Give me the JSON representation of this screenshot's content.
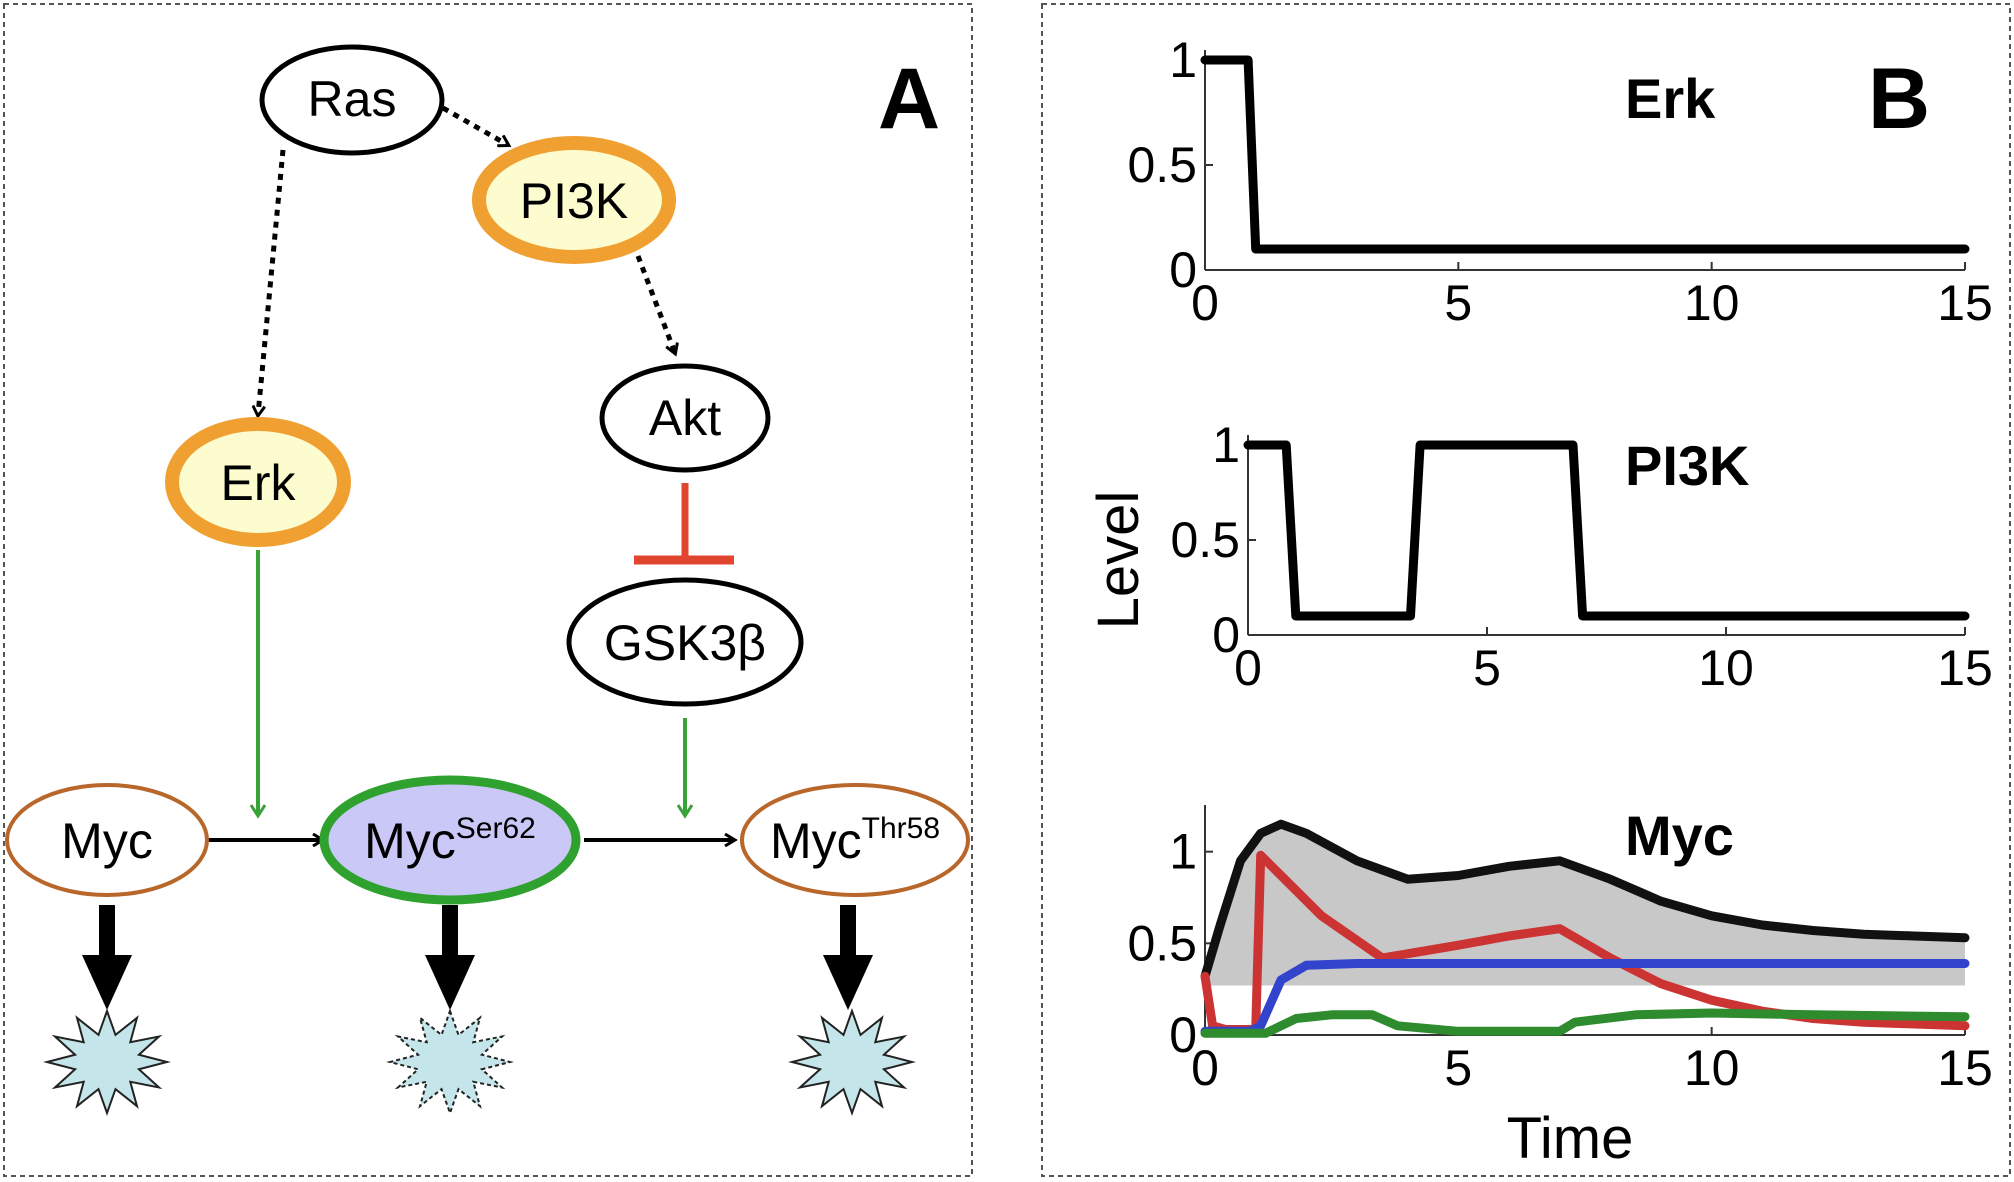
{
  "panel_a": {
    "label": "A",
    "nodes": {
      "ras": "Ras",
      "pi3k": "PI3K",
      "akt": "Akt",
      "erk": "Erk",
      "gsk3b": "GSK3β",
      "myc": "Myc",
      "myc_ser62_base": "Myc",
      "myc_ser62_sup": "Ser62",
      "myc_thr58_base": "Myc",
      "myc_thr58_sup": "Thr58"
    },
    "colors": {
      "node_outline": "#000000",
      "highlight_ring": "#f0a030",
      "highlight_fill": "#fdfccf",
      "myc_ring": "#b8662a",
      "ser62_ring": "#2fa12f",
      "ser62_fill": "#c9c8f7",
      "activation": "#39a339",
      "inhibition": "#e2452f",
      "degradation_fill": "#c4e6ea"
    }
  },
  "panel_b": {
    "label": "B",
    "y_axis_label": "Level",
    "x_axis_label": "Time"
  },
  "chart_data": [
    {
      "type": "line",
      "title": "Erk",
      "xlim": [
        0,
        15
      ],
      "ylim": [
        0,
        1
      ],
      "x_ticks": [
        "0",
        "5",
        "10",
        "15"
      ],
      "y_ticks": [
        "0",
        "0.5",
        "1"
      ],
      "series": [
        {
          "color": "#000000",
          "points": [
            [
              0,
              1
            ],
            [
              0.5,
              1
            ],
            [
              0.85,
              1
            ],
            [
              1,
              0.1
            ],
            [
              15,
              0.1
            ]
          ]
        }
      ]
    },
    {
      "type": "line",
      "title": "PI3K",
      "xlim": [
        0,
        15
      ],
      "ylim": [
        0,
        1
      ],
      "x_ticks": [
        "0",
        "5",
        "10",
        "15"
      ],
      "y_ticks": [
        "0",
        "0.5",
        "1"
      ],
      "series": [
        {
          "color": "#000000",
          "points": [
            [
              0,
              1
            ],
            [
              0.8,
              1
            ],
            [
              1,
              0.1
            ],
            [
              3.4,
              0.1
            ],
            [
              3.6,
              1
            ],
            [
              6.8,
              1
            ],
            [
              7,
              0.1
            ],
            [
              15,
              0.1
            ]
          ]
        }
      ]
    },
    {
      "type": "line",
      "title": "Myc",
      "xlim": [
        0,
        15
      ],
      "ylim": [
        0,
        1.2
      ],
      "x_ticks": [
        "0",
        "5",
        "10",
        "15"
      ],
      "y_ticks": [
        "0",
        "0.5",
        "1"
      ],
      "band": {
        "color": "#c8c8c8",
        "lower": 0.27,
        "upper_series": 0
      },
      "series": [
        {
          "color": "#111111",
          "points": [
            [
              0,
              0.32
            ],
            [
              0.3,
              0.6
            ],
            [
              0.7,
              0.95
            ],
            [
              1.1,
              1.1
            ],
            [
              1.5,
              1.15
            ],
            [
              2,
              1.1
            ],
            [
              3,
              0.95
            ],
            [
              4,
              0.85
            ],
            [
              5,
              0.87
            ],
            [
              6,
              0.92
            ],
            [
              7,
              0.95
            ],
            [
              8,
              0.85
            ],
            [
              9,
              0.73
            ],
            [
              10,
              0.65
            ],
            [
              11,
              0.6
            ],
            [
              12,
              0.57
            ],
            [
              13,
              0.55
            ],
            [
              14,
              0.54
            ],
            [
              15,
              0.53
            ]
          ]
        },
        {
          "color": "#cc3333",
          "points": [
            [
              0,
              0.32
            ],
            [
              0.15,
              0.05
            ],
            [
              0.4,
              0.03
            ],
            [
              1,
              0.03
            ],
            [
              1.1,
              0.98
            ],
            [
              2.3,
              0.65
            ],
            [
              3.5,
              0.42
            ],
            [
              5,
              0.49
            ],
            [
              6,
              0.54
            ],
            [
              7,
              0.58
            ],
            [
              8,
              0.42
            ],
            [
              9,
              0.28
            ],
            [
              10,
              0.19
            ],
            [
              11,
              0.13
            ],
            [
              12,
              0.09
            ],
            [
              13,
              0.07
            ],
            [
              14,
              0.06
            ],
            [
              15,
              0.05
            ]
          ]
        },
        {
          "color": "#3344cc",
          "points": [
            [
              0,
              0.02
            ],
            [
              0.9,
              0.02
            ],
            [
              1.1,
              0.05
            ],
            [
              1.5,
              0.3
            ],
            [
              2,
              0.38
            ],
            [
              3,
              0.39
            ],
            [
              15,
              0.39
            ]
          ]
        },
        {
          "color": "#2e8b2e",
          "points": [
            [
              0,
              0.01
            ],
            [
              1.2,
              0.01
            ],
            [
              1.8,
              0.09
            ],
            [
              2.5,
              0.11
            ],
            [
              3.3,
              0.11
            ],
            [
              3.8,
              0.05
            ],
            [
              5,
              0.02
            ],
            [
              6.5,
              0.02
            ],
            [
              7,
              0.02
            ],
            [
              7.3,
              0.07
            ],
            [
              8.5,
              0.11
            ],
            [
              10,
              0.12
            ],
            [
              12,
              0.11
            ],
            [
              15,
              0.1
            ]
          ]
        }
      ]
    }
  ]
}
